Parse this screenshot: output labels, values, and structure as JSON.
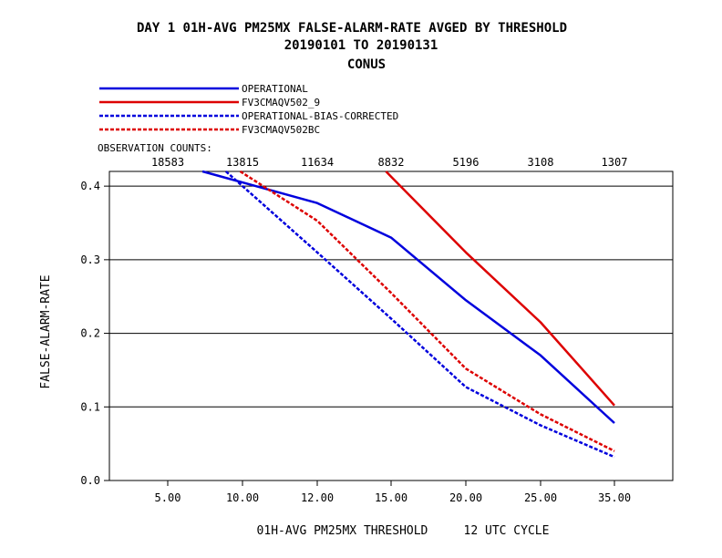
{
  "chart_data": {
    "type": "line",
    "title": "DAY 1    01H-AVG PM25MX FALSE-ALARM-RATE    AVGED BY THRESHOLD",
    "subtitle": "20190101 TO 20190131",
    "region": "CONUS",
    "xlabel": "01H-AVG PM25MX THRESHOLD     12 UTC CYCLE",
    "ylabel": "FALSE-ALARM-RATE",
    "categories": [
      "5.00",
      "10.00",
      "12.00",
      "15.00",
      "20.00",
      "25.00",
      "35.00"
    ],
    "ylim": [
      0.0,
      0.42
    ],
    "yticks": [
      "0.0",
      "0.1",
      "0.2",
      "0.3",
      "0.4"
    ],
    "grid": "horizontal",
    "legend_placement": "top-left",
    "observation_counts_label": "OBSERVATION COUNTS:",
    "observation_counts": [
      "18583",
      "13815",
      "11634",
      "8832",
      "5196",
      "3108",
      "1307"
    ],
    "series": [
      {
        "name": "OPERATIONAL",
        "color": "#0000dd",
        "style": "solid",
        "values": [
          null,
          0.405,
          0.377,
          0.33,
          0.245,
          0.17,
          0.078
        ]
      },
      {
        "name": "FV3CMAQV502_9",
        "color": "#dd0000",
        "style": "solid",
        "values": [
          null,
          null,
          null,
          0.413,
          0.31,
          0.215,
          0.102
        ]
      },
      {
        "name": "OPERATIONAL-BIAS-CORRECTED",
        "color": "#0000dd",
        "style": "dashed",
        "values": [
          null,
          0.4,
          0.31,
          0.22,
          0.127,
          0.075,
          0.032
        ]
      },
      {
        "name": "FV3CMAQV502BC",
        "color": "#dd0000",
        "style": "dashed",
        "values": [
          null,
          0.418,
          0.353,
          0.255,
          0.152,
          0.09,
          0.04
        ]
      }
    ],
    "offscale_entries": [
      {
        "series": 0,
        "from": 0.422,
        "to": 0.405
      },
      {
        "series": 1,
        "from": 0.422,
        "to": 0.413
      },
      {
        "series": 2,
        "from": 0.422,
        "to": 0.4
      },
      {
        "series": 3,
        "from": 0.422,
        "to": 0.418
      }
    ]
  }
}
